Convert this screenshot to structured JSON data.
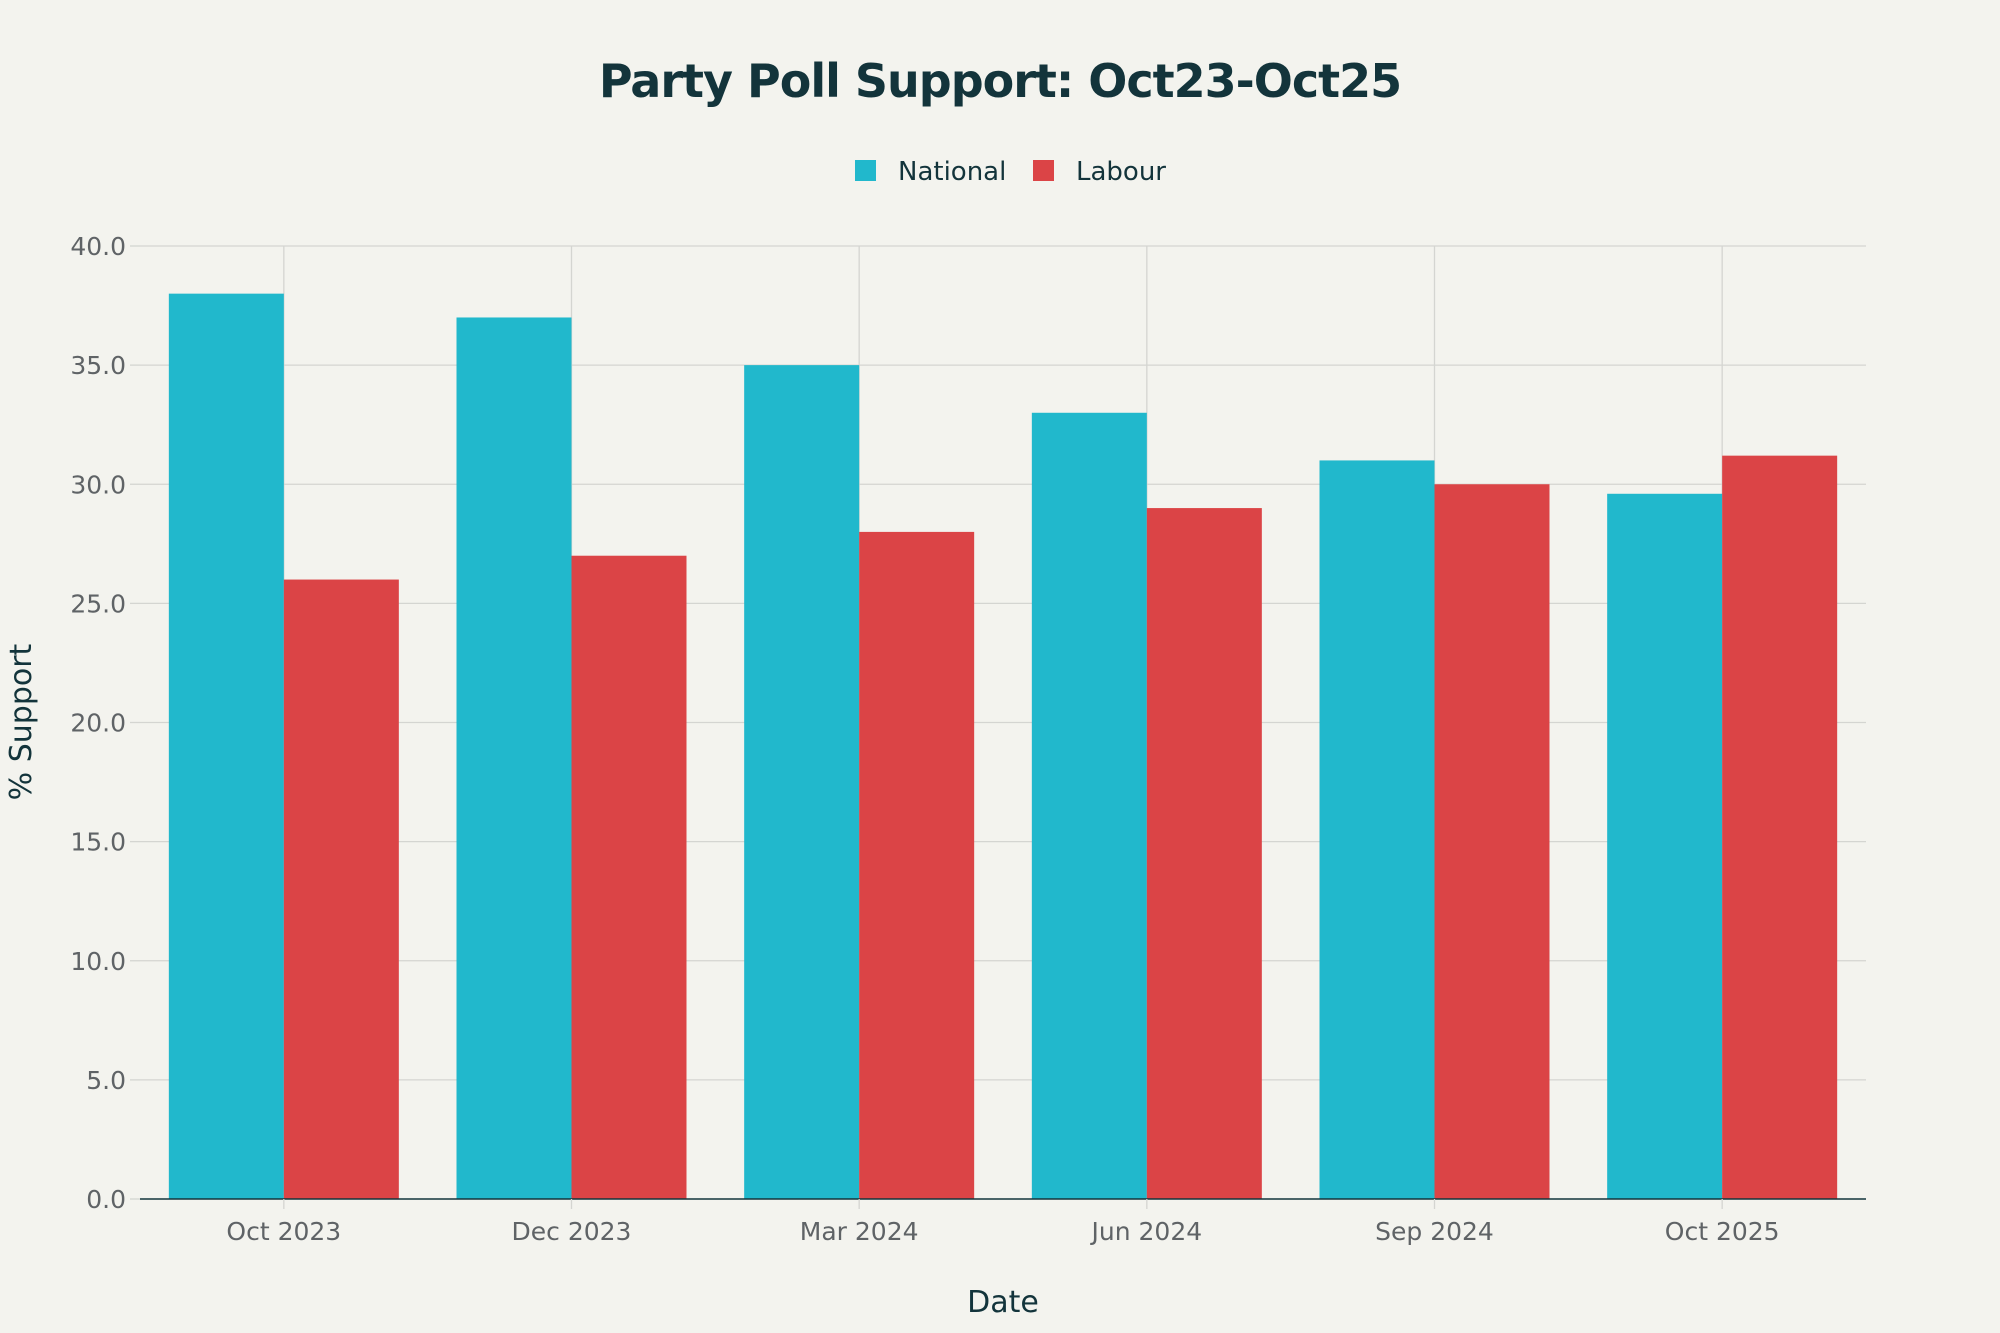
{
  "chart_data": {
    "type": "bar",
    "title": "Party Poll Support: Oct23-Oct25",
    "xlabel": "Date",
    "ylabel": "% Support",
    "categories": [
      "Oct 2023",
      "Dec 2023",
      "Mar 2024",
      "Jun 2024",
      "Sep 2024",
      "Oct 2025"
    ],
    "series": [
      {
        "name": "National",
        "color": "#21b8cc",
        "values": [
          38.0,
          37.0,
          35.0,
          33.0,
          31.0,
          29.6
        ]
      },
      {
        "name": "Labour",
        "color": "#db4446",
        "values": [
          26.0,
          27.0,
          28.0,
          29.0,
          30.0,
          31.2
        ]
      }
    ],
    "ylim": [
      0,
      40
    ],
    "yticks": [
      "0.0",
      "5.0",
      "10.0",
      "15.0",
      "20.0",
      "25.0",
      "30.0",
      "35.0",
      "40.0"
    ],
    "grid": true,
    "legend_position": "top-center"
  },
  "colors": {
    "background": "#f3f3ee",
    "title": "#13343b",
    "text": "#13343b",
    "tick": "#5f6366",
    "grid": "#d4d5d1",
    "axis": "#13343b"
  }
}
